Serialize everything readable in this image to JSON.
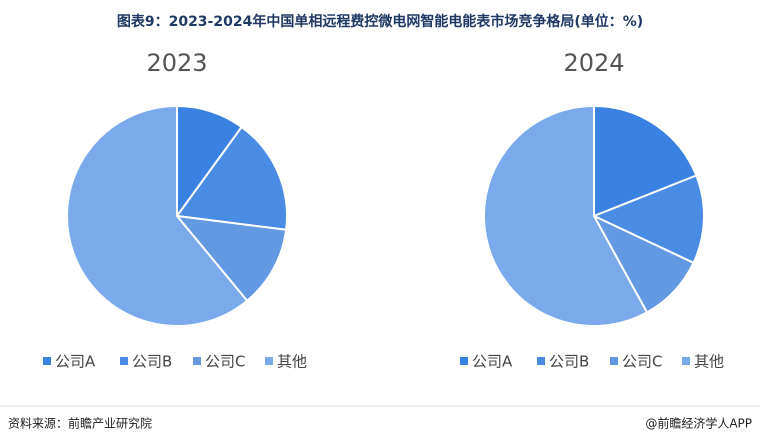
{
  "title": "图表9：2023-2024年中国单相远程费控微电网智能电能表市场竞争格局(单位：%)",
  "source": "资料来源：前瞻产业研究院",
  "brand": "@前瞻经济学人APP",
  "chart_data": [
    {
      "type": "pie",
      "title": "2023",
      "categories": [
        "公司A",
        "公司B",
        "公司C",
        "其他"
      ],
      "values": [
        10,
        17,
        12,
        61
      ],
      "colors": [
        "#3a82e2",
        "#4a8ce4",
        "#6399e2",
        "#7aaaeb"
      ]
    },
    {
      "type": "pie",
      "title": "2024",
      "categories": [
        "公司A",
        "公司B",
        "公司C",
        "其他"
      ],
      "values": [
        19,
        13,
        10,
        58
      ],
      "colors": [
        "#3a82e2",
        "#4a8ce4",
        "#6399e2",
        "#7aaaeb"
      ]
    }
  ]
}
